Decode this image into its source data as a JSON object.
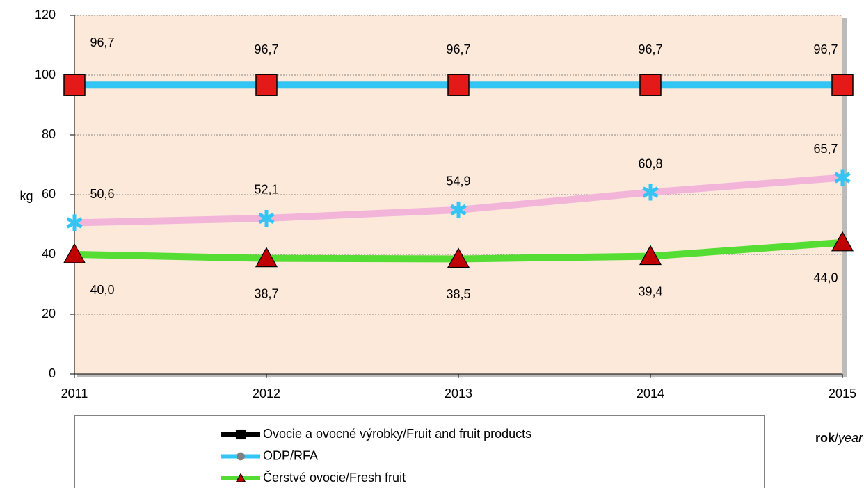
{
  "chart_data": {
    "type": "line",
    "y_label": "kg",
    "x_label": "rok/year",
    "categories": [
      "2011",
      "2012",
      "2013",
      "2014",
      "2015"
    ],
    "ylim": [
      0,
      120
    ],
    "yticks": [
      0,
      20,
      40,
      60,
      80,
      100,
      120
    ],
    "grid": true,
    "background": "#fde9d9",
    "series": [
      {
        "name": "Ovocie a ovocné výrobky/Fruit and fruit products",
        "color": "#f3b4d9",
        "marker": "asterisk",
        "marker_color": "#33c6f4",
        "legend_color": "#000000",
        "legend_marker_color": "#000000",
        "legend_marker": "square",
        "values": [
          50.6,
          52.1,
          54.9,
          60.8,
          65.7
        ],
        "value_labels": [
          "50,6",
          "52,1",
          "54,9",
          "60,8",
          "65,7"
        ]
      },
      {
        "name": "ODP/RFA",
        "color": "#33c6f4",
        "marker": "square",
        "marker_color": "#e61919",
        "legend_color": "#33c6f4",
        "legend_marker_color": "#808080",
        "legend_marker": "circle",
        "values": [
          96.7,
          96.7,
          96.7,
          96.7,
          96.7
        ],
        "value_labels": [
          "96,7",
          "96,7",
          "96,7",
          "96,7",
          "96,7"
        ]
      },
      {
        "name": "Čerstvé ovocie/Fresh fruit",
        "color": "#55dd33",
        "marker": "triangle",
        "marker_color": "#c00000",
        "legend_color": "#55dd33",
        "legend_marker_color": "#c00000",
        "legend_marker": "triangle",
        "values": [
          40.0,
          38.7,
          38.5,
          39.4,
          44.0
        ],
        "value_labels": [
          "40,0",
          "38,7",
          "38,5",
          "39,4",
          "44,0"
        ]
      }
    ]
  }
}
